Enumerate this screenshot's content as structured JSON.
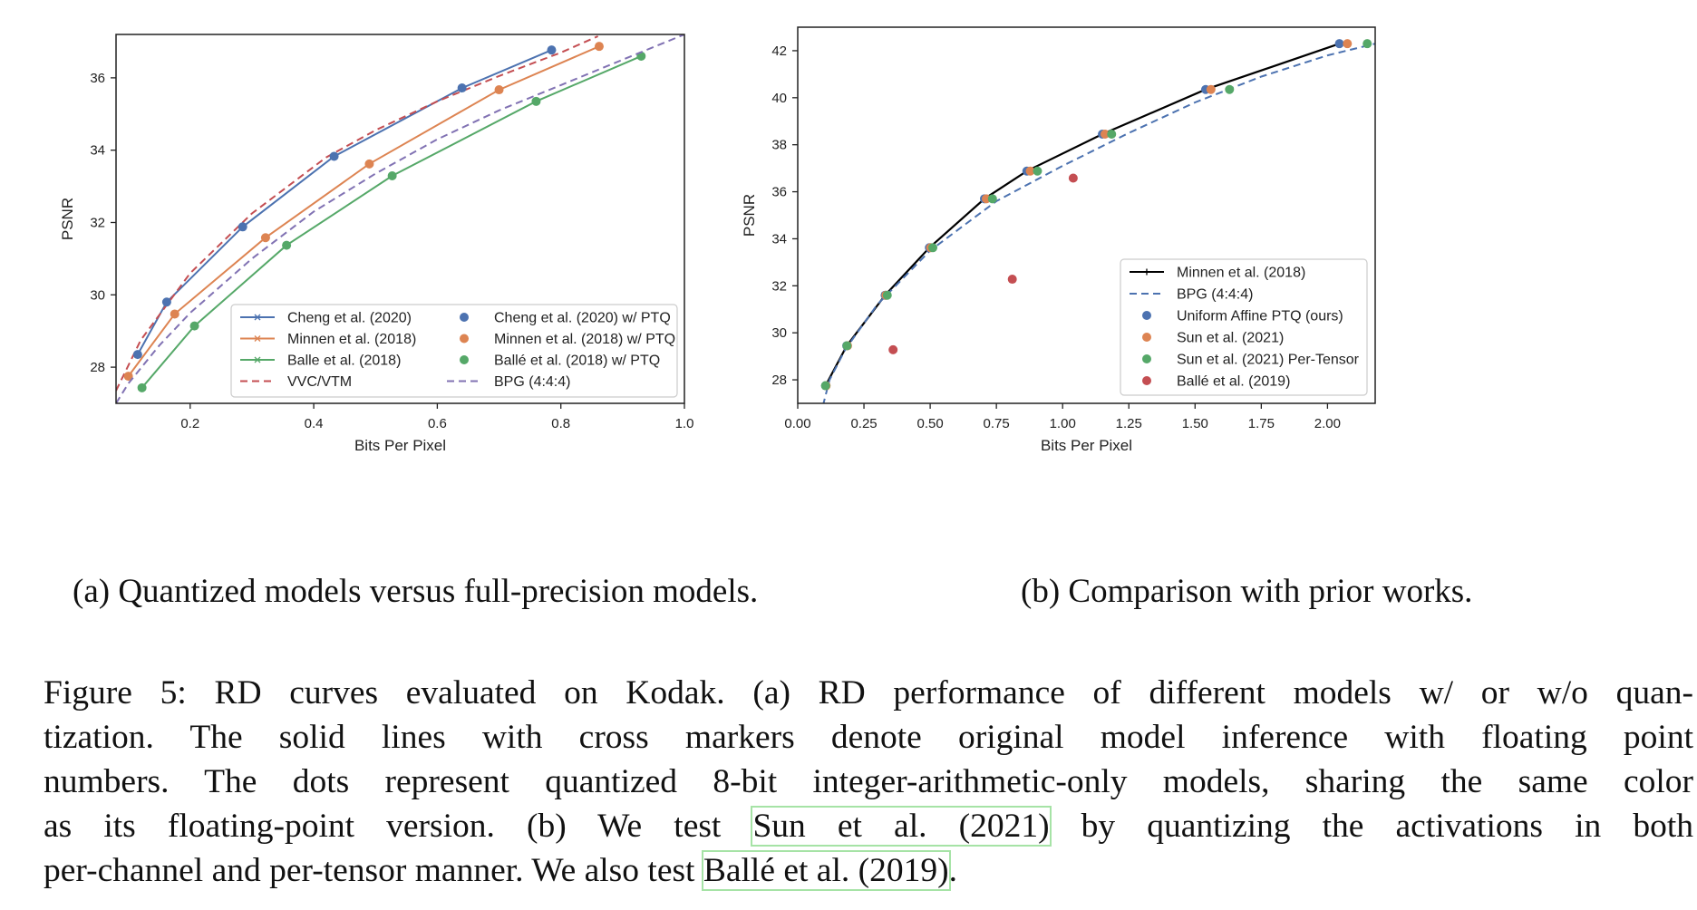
{
  "figure": {
    "sub_captions": {
      "a": "(a) Quantized models versus full-precision models.",
      "b": "(b) Comparison with prior works."
    },
    "caption_lines": [
      "Figure 5: RD curves evaluated on Kodak. (a) RD performance of different models w/ or w/o quan-",
      "tization. The solid lines with cross markers denote original model inference with floating point",
      "numbers. The dots represent quantized 8-bit integer-arithmetic-only models, sharing the same color",
      [
        "as its floating-point version. (b) We test ",
        {
          "cite": "Sun et al. (2021)"
        },
        " by quantizing the activations in both"
      ],
      [
        "per-channel and per-tensor manner. We also test ",
        {
          "cite": "Ballé et al. (2019)"
        },
        "."
      ]
    ]
  },
  "chart_data": [
    {
      "id": "a",
      "type": "line",
      "xlabel": "Bits Per Pixel",
      "ylabel": "PSNR",
      "xlim": [
        0.08,
        1.0
      ],
      "ylim": [
        27.0,
        37.2
      ],
      "xticks": [
        0.2,
        0.4,
        0.6,
        0.8,
        1.0
      ],
      "xtick_labels": [
        "0.2",
        "0.4",
        "0.6",
        "0.8",
        "1.0"
      ],
      "yticks": [
        28,
        30,
        32,
        34,
        36
      ],
      "ytick_labels": [
        "28",
        "30",
        "32",
        "34",
        "36"
      ],
      "legend_placement": "lower-right",
      "legend_columns": 2,
      "series": [
        {
          "name": "Cheng et al. (2020)",
          "kind": "line-x",
          "color": "#4c72b0",
          "x": [
            0.115,
            0.162,
            0.285,
            0.433,
            0.64,
            0.785
          ],
          "y": [
            28.35,
            29.8,
            31.88,
            33.83,
            35.72,
            36.77
          ]
        },
        {
          "name": "Minnen et al. (2018)",
          "kind": "line-x",
          "color": "#dd8452",
          "x": [
            0.1,
            0.175,
            0.322,
            0.49,
            0.7,
            0.862
          ],
          "y": [
            27.75,
            29.47,
            31.58,
            33.62,
            35.67,
            36.87
          ]
        },
        {
          "name": "Balle et al. (2018)",
          "kind": "line-x",
          "color": "#55a868",
          "x": [
            0.122,
            0.207,
            0.356,
            0.527,
            0.76,
            0.93
          ],
          "y": [
            27.43,
            29.14,
            31.37,
            33.29,
            35.35,
            36.6
          ]
        },
        {
          "name": "VVC/VTM",
          "kind": "dashed",
          "color": "#c44e52",
          "x": [
            0.08,
            0.12,
            0.2,
            0.3,
            0.42,
            0.5,
            0.6,
            0.7,
            0.8,
            0.86
          ],
          "y": [
            27.35,
            28.75,
            30.6,
            32.25,
            33.8,
            34.55,
            35.35,
            36.05,
            36.7,
            37.15
          ]
        },
        {
          "name": "Cheng et al. (2020) w/ PTQ",
          "kind": "dots",
          "color": "#4c72b0",
          "x": [
            0.115,
            0.162,
            0.285,
            0.433,
            0.64,
            0.785
          ],
          "y": [
            28.35,
            29.8,
            31.88,
            33.83,
            35.72,
            36.77
          ]
        },
        {
          "name": "Minnen et al. (2018) w/ PTQ",
          "kind": "dots",
          "color": "#dd8452",
          "x": [
            0.1,
            0.175,
            0.322,
            0.49,
            0.7,
            0.862
          ],
          "y": [
            27.75,
            29.47,
            31.58,
            33.62,
            35.67,
            36.87
          ]
        },
        {
          "name": "Ballé et al. (2018) w/ PTQ",
          "kind": "dots",
          "color": "#55a868",
          "x": [
            0.122,
            0.207,
            0.356,
            0.527,
            0.76,
            0.93
          ],
          "y": [
            27.43,
            29.14,
            31.37,
            33.29,
            35.35,
            36.6
          ]
        },
        {
          "name": "BPG (4:4:4)",
          "kind": "dashed",
          "color": "#8172b3",
          "x": [
            0.08,
            0.1,
            0.15,
            0.2,
            0.3,
            0.4,
            0.5,
            0.6,
            0.7,
            0.8,
            0.9,
            1.0
          ],
          "y": [
            27.0,
            27.55,
            28.6,
            29.5,
            31.0,
            32.3,
            33.35,
            34.3,
            35.1,
            35.8,
            36.5,
            37.2
          ]
        }
      ]
    },
    {
      "id": "b",
      "type": "line",
      "xlabel": "Bits Per Pixel",
      "ylabel": "PSNR",
      "xlim": [
        0.0,
        2.18
      ],
      "ylim": [
        27.0,
        43.0
      ],
      "xticks": [
        0.0,
        0.25,
        0.5,
        0.75,
        1.0,
        1.25,
        1.5,
        1.75,
        2.0
      ],
      "xtick_labels": [
        "0.00",
        "0.25",
        "0.50",
        "0.75",
        "1.00",
        "1.25",
        "1.50",
        "1.75",
        "2.00"
      ],
      "yticks": [
        28,
        30,
        32,
        34,
        36,
        38,
        40,
        42
      ],
      "ytick_labels": [
        "28",
        "30",
        "32",
        "34",
        "36",
        "38",
        "40",
        "42"
      ],
      "legend_placement": "lower-right",
      "legend_columns": 1,
      "series": [
        {
          "name": "Minnen et al. (2018)",
          "kind": "line-plus",
          "color": "#000000",
          "x": [
            0.105,
            0.185,
            0.33,
            0.497,
            0.705,
            0.865,
            1.15,
            1.54,
            2.045
          ],
          "y": [
            27.75,
            29.45,
            31.6,
            33.62,
            35.7,
            36.88,
            38.45,
            40.35,
            42.3
          ]
        },
        {
          "name": "BPG (4:4:4)",
          "kind": "dashed",
          "color": "#4c72b0",
          "x": [
            0.095,
            0.12,
            0.18,
            0.3,
            0.5,
            0.75,
            1.0,
            1.25,
            1.5,
            1.75,
            2.0,
            2.18
          ],
          "y": [
            26.9,
            28.0,
            29.3,
            31.2,
            33.5,
            35.6,
            37.1,
            38.5,
            39.8,
            40.9,
            41.8,
            42.3
          ]
        },
        {
          "name": "Uniform Affine PTQ (ours)",
          "kind": "dots",
          "color": "#4c72b0",
          "x": [
            0.105,
            0.185,
            0.33,
            0.497,
            0.705,
            0.865,
            1.15,
            1.54,
            2.045
          ],
          "y": [
            27.75,
            29.45,
            31.6,
            33.62,
            35.7,
            36.88,
            38.45,
            40.35,
            42.3
          ]
        },
        {
          "name": "Sun et al. (2021)",
          "kind": "dots",
          "color": "#dd8452",
          "x": [
            0.107,
            0.188,
            0.333,
            0.502,
            0.712,
            0.878,
            1.16,
            1.56,
            2.075
          ],
          "y": [
            27.75,
            29.45,
            31.6,
            33.62,
            35.7,
            36.88,
            38.45,
            40.35,
            42.3
          ]
        },
        {
          "name": "Sun et al. (2021) Per-Tensor",
          "kind": "dots",
          "color": "#55a868",
          "x": [
            0.105,
            0.186,
            0.338,
            0.51,
            0.735,
            0.905,
            1.185,
            1.63,
            2.15
          ],
          "y": [
            27.75,
            29.45,
            31.6,
            33.62,
            35.7,
            36.88,
            38.45,
            40.35,
            42.3
          ]
        },
        {
          "name": "Ballé et al. (2019)",
          "kind": "dots",
          "color": "#c44e52",
          "x": [
            0.36,
            0.81,
            1.04
          ],
          "y": [
            29.28,
            32.28,
            36.58
          ]
        }
      ]
    }
  ]
}
